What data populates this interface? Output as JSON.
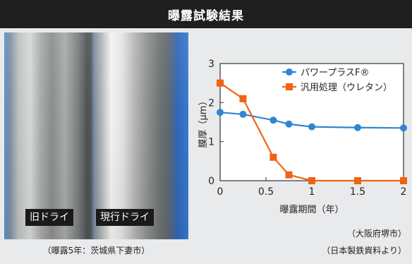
{
  "header": {
    "title": "曝露試験結果"
  },
  "photo": {
    "label_old": "旧ドライ",
    "label_new": "現行ドライ",
    "caption": "（曝露5年：茨城県下妻市）"
  },
  "source": {
    "line1": "（大阪府堺市）",
    "line2": "（日本製鉄資料より）"
  },
  "chart_data": {
    "type": "line",
    "xlabel": "曝露期間（年）",
    "ylabel": "膜厚（μm）",
    "xlim": [
      0,
      2
    ],
    "ylim": [
      0,
      3
    ],
    "xticks": [
      "0",
      "0.5",
      "1",
      "1.5",
      "2"
    ],
    "yticks": [
      "0",
      "1",
      "2",
      "3"
    ],
    "legend_position": "top-right",
    "grid": false,
    "series": [
      {
        "name": "パワープラスF®",
        "color": "#2e86d4",
        "marker": "circle",
        "x": [
          0,
          0.25,
          0.58,
          0.75,
          1.0,
          1.5,
          2.0
        ],
        "y": [
          1.75,
          1.7,
          1.55,
          1.45,
          1.38,
          1.36,
          1.35
        ]
      },
      {
        "name": "汎用処理（ウレタン）",
        "color": "#ee6414",
        "marker": "square",
        "x": [
          0,
          0.25,
          0.58,
          0.75,
          1.0,
          1.5,
          2.0
        ],
        "y": [
          2.5,
          2.1,
          0.6,
          0.15,
          0.0,
          0.0,
          0.0
        ]
      }
    ]
  }
}
